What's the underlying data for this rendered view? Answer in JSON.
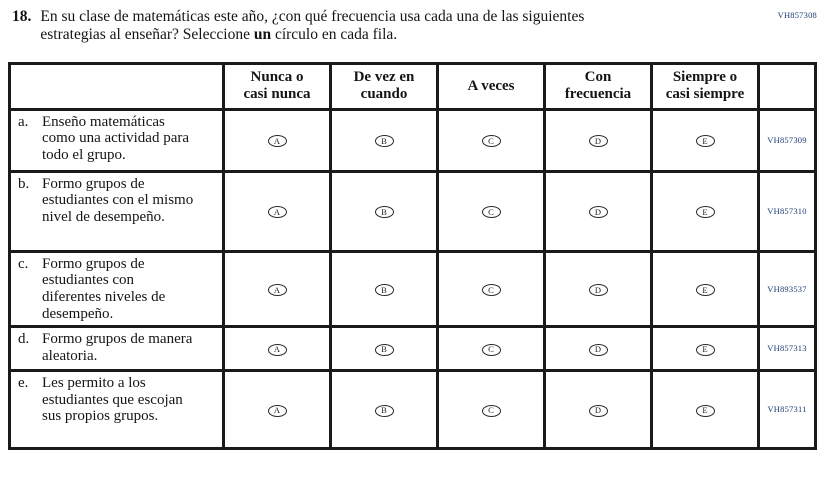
{
  "page_code": "VH857308",
  "question": {
    "number": "18.",
    "text_part1": "En su clase de matemáticas este año, ¿con qué frecuencia usa cada una de las siguientes estrategias al enseñar? Seleccione ",
    "bold_word": "un",
    "text_part2": " círculo en cada fila."
  },
  "table": {
    "columns": [
      "Nunca o\ncasi nunca",
      "De vez en\ncuando",
      "A veces",
      "Con\nfrecuencia",
      "Siempre o\ncasi siempre"
    ],
    "options": [
      "A",
      "B",
      "C",
      "D",
      "E"
    ],
    "rows": [
      {
        "letter": "a.",
        "text": "Enseño matemáticas como una actividad para todo el grupo.",
        "code": "VH857309"
      },
      {
        "letter": "b.",
        "text": "Formo grupos de estudiantes con el mismo nivel de desempeño.",
        "code": "VH857310"
      },
      {
        "letter": "c.",
        "text": "Formo grupos de estudiantes con diferentes niveles de desempeño.",
        "code": "VH893537"
      },
      {
        "letter": "d.",
        "text": "Formo grupos de manera aleatoria.",
        "code": "VH857313"
      },
      {
        "letter": "e.",
        "text": "Les permito a los estudiantes que escojan sus propios grupos.",
        "code": "VH857311"
      }
    ]
  },
  "colors": {
    "code_text": "#1f3d73",
    "border": "#1a1a1a",
    "text": "#151515"
  }
}
